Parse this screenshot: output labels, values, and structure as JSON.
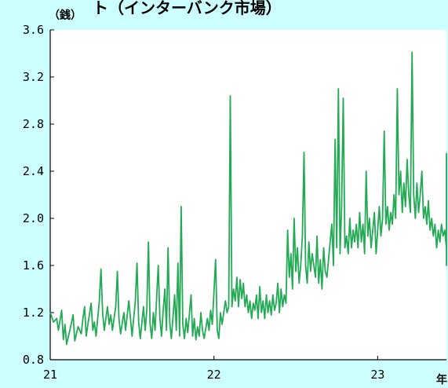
{
  "chart_data": {
    "type": "line",
    "title": "ト（インターバンク市場）",
    "ylabel": "（銭）",
    "xlabel": "年",
    "ylim": [
      0.8,
      3.6
    ],
    "xlim": [
      21,
      23.42
    ],
    "yticks": [
      0.8,
      1.2,
      1.6,
      2.0,
      2.4,
      2.8,
      3.2,
      3.6
    ],
    "ytick_labels": [
      "0.8",
      "1.2",
      "1.6",
      "2.0",
      "2.4",
      "2.8",
      "3.2",
      "3.6"
    ],
    "xticks": [
      21,
      22,
      23
    ],
    "xtick_labels": [
      "21",
      "22",
      "23"
    ],
    "grid": false,
    "series": [
      {
        "color": "#22aa55",
        "points": [
          [
            21.0,
            1.2
          ],
          [
            21.02,
            1.12
          ],
          [
            21.04,
            1.15
          ],
          [
            21.05,
            1.05
          ],
          [
            21.07,
            1.22
          ],
          [
            21.08,
            0.97
          ],
          [
            21.09,
            1.1
          ],
          [
            21.1,
            0.93
          ],
          [
            21.12,
            1.05
          ],
          [
            21.14,
            1.18
          ],
          [
            21.15,
            0.96
          ],
          [
            21.17,
            1.08
          ],
          [
            21.19,
            1.02
          ],
          [
            21.2,
            1.15
          ],
          [
            21.21,
            1.25
          ],
          [
            21.22,
            1.0
          ],
          [
            21.23,
            1.1
          ],
          [
            21.25,
            1.28
          ],
          [
            21.26,
            1.05
          ],
          [
            21.27,
            1.12
          ],
          [
            21.28,
            1.0
          ],
          [
            21.3,
            1.3
          ],
          [
            21.31,
            1.57
          ],
          [
            21.32,
            1.2
          ],
          [
            21.33,
            1.05
          ],
          [
            21.35,
            1.25
          ],
          [
            21.36,
            1.1
          ],
          [
            21.37,
            1.18
          ],
          [
            21.38,
            1.05
          ],
          [
            21.4,
            1.25
          ],
          [
            21.41,
            1.55
          ],
          [
            21.42,
            1.15
          ],
          [
            21.43,
            1.02
          ],
          [
            21.45,
            1.2
          ],
          [
            21.46,
            1.05
          ],
          [
            21.48,
            1.3
          ],
          [
            21.49,
            1.15
          ],
          [
            21.5,
            1.0
          ],
          [
            21.52,
            1.3
          ],
          [
            21.53,
            1.62
          ],
          [
            21.54,
            1.12
          ],
          [
            21.55,
            0.98
          ],
          [
            21.57,
            1.25
          ],
          [
            21.58,
            1.05
          ],
          [
            21.59,
            1.22
          ],
          [
            21.6,
            1.8
          ],
          [
            21.61,
            1.1
          ],
          [
            21.62,
            0.98
          ],
          [
            21.63,
            1.2
          ],
          [
            21.64,
            1.05
          ],
          [
            21.66,
            1.6
          ],
          [
            21.67,
            1.15
          ],
          [
            21.68,
            1.0
          ],
          [
            21.69,
            1.22
          ],
          [
            21.7,
            1.4
          ],
          [
            21.71,
            1.05
          ],
          [
            21.72,
            1.75
          ],
          [
            21.73,
            1.12
          ],
          [
            21.74,
            0.98
          ],
          [
            21.76,
            1.35
          ],
          [
            21.77,
            1.05
          ],
          [
            21.78,
            1.62
          ],
          [
            21.79,
            1.0
          ],
          [
            21.8,
            2.1
          ],
          [
            21.81,
            1.1
          ],
          [
            21.82,
            0.98
          ],
          [
            21.83,
            1.15
          ],
          [
            21.84,
            1.03
          ],
          [
            21.86,
            1.35
          ],
          [
            21.87,
            1.0
          ],
          [
            21.88,
            1.15
          ],
          [
            21.89,
            0.97
          ],
          [
            21.9,
            1.08
          ],
          [
            21.91,
            1.0
          ],
          [
            21.92,
            1.2
          ],
          [
            21.93,
            1.05
          ],
          [
            21.94,
            0.98
          ],
          [
            21.96,
            1.15
          ],
          [
            21.97,
            1.05
          ],
          [
            21.98,
            1.22
          ],
          [
            21.99,
            1.1
          ],
          [
            22.01,
            1.65
          ],
          [
            22.02,
            1.05
          ],
          [
            22.03,
            0.98
          ],
          [
            22.04,
            1.2
          ],
          [
            22.05,
            1.1
          ],
          [
            22.07,
            1.3
          ],
          [
            22.08,
            1.2
          ],
          [
            22.09,
            1.25
          ],
          [
            22.1,
            3.04
          ],
          [
            22.11,
            1.25
          ],
          [
            22.12,
            1.4
          ],
          [
            22.13,
            1.3
          ],
          [
            22.14,
            1.5
          ],
          [
            22.15,
            1.25
          ],
          [
            22.16,
            1.48
          ],
          [
            22.17,
            1.32
          ],
          [
            22.18,
            1.45
          ],
          [
            22.19,
            1.25
          ],
          [
            22.2,
            1.35
          ],
          [
            22.21,
            1.2
          ],
          [
            22.22,
            1.3
          ],
          [
            22.23,
            1.15
          ],
          [
            22.24,
            1.28
          ],
          [
            22.25,
            1.22
          ],
          [
            22.26,
            1.35
          ],
          [
            22.27,
            1.15
          ],
          [
            22.28,
            1.42
          ],
          [
            22.29,
            1.2
          ],
          [
            22.3,
            1.3
          ],
          [
            22.31,
            1.15
          ],
          [
            22.32,
            1.35
          ],
          [
            22.33,
            1.2
          ],
          [
            22.34,
            1.3
          ],
          [
            22.35,
            1.18
          ],
          [
            22.36,
            1.35
          ],
          [
            22.37,
            1.22
          ],
          [
            22.38,
            1.28
          ],
          [
            22.39,
            1.45
          ],
          [
            22.4,
            1.2
          ],
          [
            22.41,
            1.4
          ],
          [
            22.42,
            1.25
          ],
          [
            22.43,
            1.35
          ],
          [
            22.44,
            1.28
          ],
          [
            22.45,
            1.9
          ],
          [
            22.46,
            1.5
          ],
          [
            22.47,
            1.7
          ],
          [
            22.48,
            1.4
          ],
          [
            22.49,
            2.0
          ],
          [
            22.5,
            1.55
          ],
          [
            22.51,
            1.75
          ],
          [
            22.52,
            1.45
          ],
          [
            22.53,
            1.6
          ],
          [
            22.54,
            1.85
          ],
          [
            22.55,
            2.56
          ],
          [
            22.56,
            1.6
          ],
          [
            22.57,
            1.45
          ],
          [
            22.58,
            1.8
          ],
          [
            22.59,
            1.55
          ],
          [
            22.6,
            1.7
          ],
          [
            22.61,
            1.6
          ],
          [
            22.62,
            1.5
          ],
          [
            22.63,
            1.85
          ],
          [
            22.64,
            1.45
          ],
          [
            22.65,
            1.65
          ],
          [
            22.66,
            1.4
          ],
          [
            22.67,
            1.75
          ],
          [
            22.68,
            1.55
          ],
          [
            22.69,
            1.5
          ],
          [
            22.71,
            1.8
          ],
          [
            22.72,
            1.95
          ],
          [
            22.73,
            1.6
          ],
          [
            22.74,
            2.67
          ],
          [
            22.75,
            1.75
          ],
          [
            22.76,
            3.1
          ],
          [
            22.77,
            1.7
          ],
          [
            22.78,
            2.1
          ],
          [
            22.79,
            3.02
          ],
          [
            22.8,
            1.75
          ],
          [
            22.81,
            1.85
          ],
          [
            22.82,
            1.7
          ],
          [
            22.83,
            2.0
          ],
          [
            22.84,
            1.75
          ],
          [
            22.85,
            1.9
          ],
          [
            22.86,
            1.8
          ],
          [
            22.87,
            1.95
          ],
          [
            22.88,
            1.75
          ],
          [
            22.89,
            2.05
          ],
          [
            22.9,
            1.8
          ],
          [
            22.91,
            1.95
          ],
          [
            22.92,
            1.7
          ],
          [
            22.93,
            2.4
          ],
          [
            22.94,
            1.85
          ],
          [
            22.95,
            2.0
          ],
          [
            22.96,
            1.75
          ],
          [
            22.97,
            1.9
          ],
          [
            22.98,
            2.05
          ],
          [
            22.99,
            1.7
          ],
          [
            23.0,
            1.9
          ],
          [
            23.01,
            2.1
          ],
          [
            23.02,
            1.85
          ],
          [
            23.03,
            2.0
          ],
          [
            23.04,
            2.74
          ],
          [
            23.05,
            1.95
          ],
          [
            23.06,
            2.1
          ],
          [
            23.07,
            1.9
          ],
          [
            23.08,
            2.05
          ],
          [
            23.09,
            1.95
          ],
          [
            23.1,
            2.2
          ],
          [
            23.11,
            2.0
          ],
          [
            23.12,
            3.1
          ],
          [
            23.13,
            2.2
          ],
          [
            23.14,
            2.4
          ],
          [
            23.15,
            2.05
          ],
          [
            23.16,
            2.3
          ],
          [
            23.17,
            2.1
          ],
          [
            23.18,
            2.5
          ],
          [
            23.19,
            2.2
          ],
          [
            23.2,
            2.05
          ],
          [
            23.21,
            3.41
          ],
          [
            23.22,
            2.2
          ],
          [
            23.23,
            2.0
          ],
          [
            23.24,
            2.3
          ],
          [
            23.25,
            2.05
          ],
          [
            23.26,
            2.2
          ],
          [
            23.27,
            2.4
          ],
          [
            23.28,
            2.0
          ],
          [
            23.29,
            2.1
          ],
          [
            23.3,
            1.95
          ],
          [
            23.31,
            2.15
          ],
          [
            23.32,
            1.9
          ],
          [
            23.33,
            2.0
          ],
          [
            23.34,
            1.85
          ],
          [
            23.35,
            1.95
          ],
          [
            23.36,
            1.75
          ],
          [
            23.37,
            1.9
          ],
          [
            23.38,
            1.8
          ],
          [
            23.39,
            1.95
          ],
          [
            23.4,
            1.85
          ],
          [
            23.41,
            1.9
          ],
          [
            23.42,
            1.75
          ],
          [
            23.43,
            2.2
          ],
          [
            23.44,
            2.55
          ],
          [
            23.45,
            2.1
          ],
          [
            23.46,
            1.9
          ],
          [
            23.47,
            1.8
          ],
          [
            23.48,
            2.0
          ],
          [
            23.49,
            1.75
          ],
          [
            23.5,
            1.95
          ],
          [
            23.51,
            2.3
          ],
          [
            23.52,
            1.9
          ],
          [
            23.53,
            1.75
          ],
          [
            23.54,
            1.95
          ],
          [
            23.55,
            1.6
          ],
          [
            23.56,
            1.9
          ],
          [
            23.57,
            1.7
          ],
          [
            23.58,
            1.85
          ],
          [
            23.59,
            2.0
          ],
          [
            23.6,
            1.85
          ]
        ]
      }
    ]
  }
}
